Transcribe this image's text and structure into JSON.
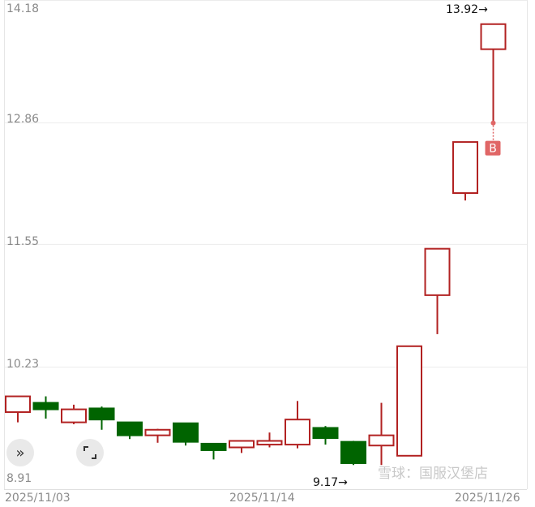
{
  "chart_data": {
    "type": "candlestick",
    "ylim": [
      8.91,
      14.18
    ],
    "y_ticks": [
      "14.18",
      "12.86",
      "11.55",
      "10.23",
      "8.91"
    ],
    "x_tick_labels": [
      "2025/11/03",
      "2025/11/14",
      "2025/11/26"
    ],
    "grid": true,
    "colors": {
      "up": "#b22222",
      "down": "#006400",
      "marker": "#e06666"
    },
    "candles": [
      {
        "o": 9.74,
        "h": 9.91,
        "l": 9.63,
        "c": 9.91
      },
      {
        "o": 9.84,
        "h": 9.91,
        "l": 9.67,
        "c": 9.77
      },
      {
        "o": 9.63,
        "h": 9.82,
        "l": 9.61,
        "c": 9.77
      },
      {
        "o": 9.78,
        "h": 9.8,
        "l": 9.55,
        "c": 9.66
      },
      {
        "o": 9.63,
        "h": 9.63,
        "l": 9.45,
        "c": 9.49
      },
      {
        "o": 9.49,
        "h": 9.56,
        "l": 9.41,
        "c": 9.55
      },
      {
        "o": 9.62,
        "h": 9.62,
        "l": 9.38,
        "c": 9.42
      },
      {
        "o": 9.4,
        "h": 9.4,
        "l": 9.23,
        "c": 9.33
      },
      {
        "o": 9.36,
        "h": 9.43,
        "l": 9.3,
        "c": 9.43
      },
      {
        "o": 9.39,
        "h": 9.52,
        "l": 9.36,
        "c": 9.43
      },
      {
        "o": 9.39,
        "h": 9.86,
        "l": 9.35,
        "c": 9.66
      },
      {
        "o": 9.57,
        "h": 9.59,
        "l": 9.39,
        "c": 9.46
      },
      {
        "o": 9.42,
        "h": 9.43,
        "l": 9.17,
        "c": 9.19
      },
      {
        "o": 9.38,
        "h": 9.84,
        "l": 9.17,
        "c": 9.49
      },
      {
        "o": 9.27,
        "h": 10.45,
        "l": 9.27,
        "c": 10.45
      },
      {
        "o": 11.0,
        "h": 11.5,
        "l": 10.58,
        "c": 11.5
      },
      {
        "o": 12.1,
        "h": 12.65,
        "l": 12.02,
        "c": 12.65
      },
      {
        "o": 13.65,
        "h": 13.92,
        "l": 12.82,
        "c": 13.92
      }
    ],
    "annotations": {
      "high_label": "13.92→",
      "low_label": "9.17→",
      "buy_marker": "B"
    }
  },
  "controls": {
    "expand_icon": "double-chevron-right",
    "fullscreen_icon": "fullscreen"
  },
  "watermark": "雪球：国服汉堡店"
}
